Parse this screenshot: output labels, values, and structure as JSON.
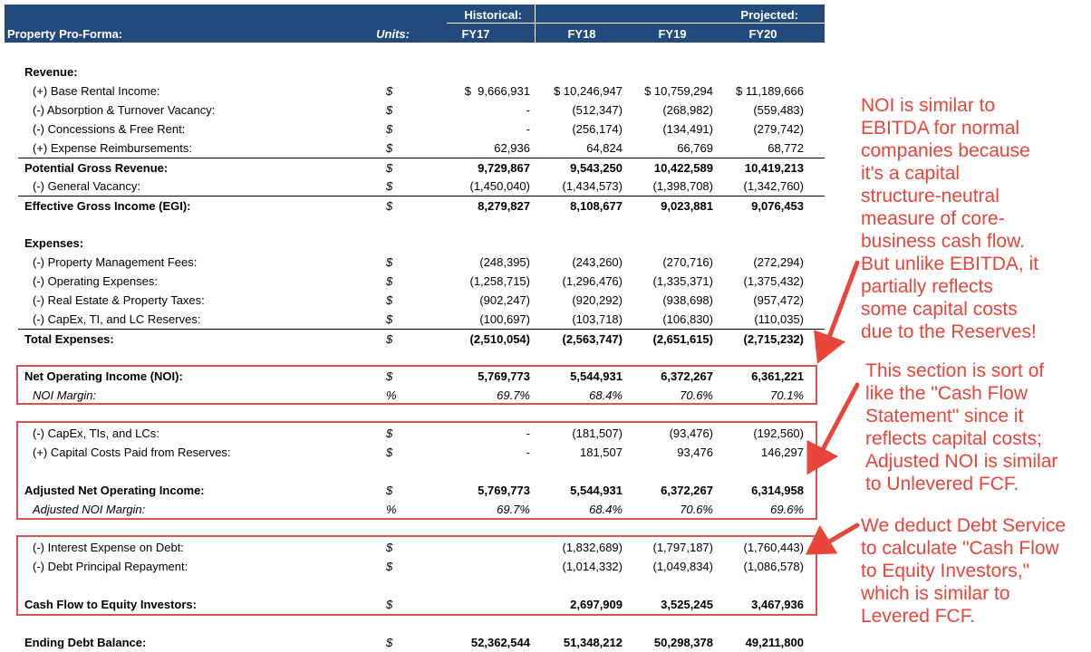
{
  "header": {
    "title": "Property Pro-Forma:",
    "units_label": "Units:",
    "historical_label": "Historical:",
    "projected_label": "Projected:",
    "years": [
      "FY17",
      "FY18",
      "FY19",
      "FY20"
    ]
  },
  "rows": [
    {
      "label": "Revenue:",
      "unit": "",
      "values": [
        "",
        "",
        "",
        ""
      ],
      "style": "head bold"
    },
    {
      "label": "(+) Base Rental Income:",
      "unit": "$",
      "values": [
        "$  9,666,931",
        "$ 10,246,947",
        "$ 10,759,294",
        "$ 11,189,666"
      ],
      "style": "sub"
    },
    {
      "label": "(-) Absorption & Turnover Vacancy:",
      "unit": "$",
      "values": [
        "-",
        "(512,347)",
        "(268,982)",
        "(559,483)"
      ],
      "style": "sub"
    },
    {
      "label": "(-) Concessions & Free Rent:",
      "unit": "$",
      "values": [
        "-",
        "(256,174)",
        "(134,491)",
        "(279,742)"
      ],
      "style": "sub"
    },
    {
      "label": "(+) Expense Reimbursements:",
      "unit": "$",
      "values": [
        "62,936",
        "64,824",
        "66,769",
        "68,772"
      ],
      "style": "sub"
    },
    {
      "label": "Potential Gross Revenue:",
      "unit": "$",
      "values": [
        "9,729,867",
        "9,543,250",
        "10,422,589",
        "10,419,213"
      ],
      "style": "total bold border"
    },
    {
      "label": "(-) General Vacancy:",
      "unit": "$",
      "values": [
        "(1,450,040)",
        "(1,434,573)",
        "(1,398,708)",
        "(1,342,760)"
      ],
      "style": "sub"
    },
    {
      "label": "Effective Gross Income (EGI):",
      "unit": "$",
      "values": [
        "8,279,827",
        "8,108,677",
        "9,023,881",
        "9,076,453"
      ],
      "style": "total bold border"
    },
    {
      "label": "Expenses:",
      "unit": "",
      "values": [
        "",
        "",
        "",
        ""
      ],
      "style": "head bold"
    },
    {
      "label": "(-) Property Management Fees:",
      "unit": "$",
      "values": [
        "(248,395)",
        "(243,260)",
        "(270,716)",
        "(272,294)"
      ],
      "style": "sub"
    },
    {
      "label": "(-) Operating Expenses:",
      "unit": "$",
      "values": [
        "(1,258,715)",
        "(1,296,476)",
        "(1,335,371)",
        "(1,375,432)"
      ],
      "style": "sub"
    },
    {
      "label": "(-) Real Estate & Property Taxes:",
      "unit": "$",
      "values": [
        "(902,247)",
        "(920,292)",
        "(938,698)",
        "(957,472)"
      ],
      "style": "sub"
    },
    {
      "label": "(-) CapEx, TI, and LC Reserves:",
      "unit": "$",
      "values": [
        "(100,697)",
        "(103,718)",
        "(106,830)",
        "(110,035)"
      ],
      "style": "sub"
    },
    {
      "label": "Total Expenses:",
      "unit": "$",
      "values": [
        "(2,510,054)",
        "(2,563,747)",
        "(2,651,615)",
        "(2,715,232)"
      ],
      "style": "total bold border"
    },
    {
      "label": "Net Operating Income (NOI):",
      "unit": "$",
      "values": [
        "5,769,773",
        "5,544,931",
        "6,372,267",
        "6,361,221"
      ],
      "style": "total bold"
    },
    {
      "label": "NOI Margin:",
      "unit": "%",
      "values": [
        "69.7%",
        "68.4%",
        "70.6%",
        "70.1%"
      ],
      "style": "sub ital"
    },
    {
      "label": "(-) CapEx, TIs, and LCs:",
      "unit": "$",
      "values": [
        "-",
        "(181,507)",
        "(93,476)",
        "(192,560)"
      ],
      "style": "sub"
    },
    {
      "label": "(+) Capital Costs Paid from Reserves:",
      "unit": "$",
      "values": [
        "-",
        "181,507",
        "93,476",
        "146,297"
      ],
      "style": "sub"
    },
    {
      "label": "Adjusted Net Operating Income:",
      "unit": "$",
      "values": [
        "5,769,773",
        "5,544,931",
        "6,372,267",
        "6,314,958"
      ],
      "style": "total bold"
    },
    {
      "label": "Adjusted NOI Margin:",
      "unit": "%",
      "values": [
        "69.7%",
        "68.4%",
        "70.6%",
        "69.6%"
      ],
      "style": "sub ital"
    },
    {
      "label": "(-) Interest Expense on Debt:",
      "unit": "$",
      "values": [
        "",
        "(1,832,689)",
        "(1,797,187)",
        "(1,760,443)"
      ],
      "style": "sub"
    },
    {
      "label": "(-) Debt Principal Repayment:",
      "unit": "$",
      "values": [
        "",
        "(1,014,332)",
        "(1,049,834)",
        "(1,086,578)"
      ],
      "style": "sub"
    },
    {
      "label": "Cash Flow to Equity Investors:",
      "unit": "$",
      "values": [
        "",
        "2,697,909",
        "3,525,245",
        "3,467,936"
      ],
      "style": "total bold"
    },
    {
      "label": "Ending Debt Balance:",
      "unit": "$",
      "values": [
        "52,362,544",
        "51,348,212",
        "50,298,378",
        "49,211,800"
      ],
      "style": "total bold"
    }
  ],
  "annotations": [
    "NOI is similar to\nEBITDA for normal\ncompanies because\nit's a capital\nstructure-neutral\nmeasure of core-\nbusiness cash flow.\nBut unlike EBITDA, it\npartially reflects\nsome capital costs\ndue to the Reserves!",
    "This section is sort of\nlike the \"Cash Flow\nStatement\" since it\nreflects capital costs;\nAdjusted NOI is similar\nto Unlevered FCF.",
    "We deduct Debt Service\nto calculate \"Cash Flow\nto Equity Investors,\"\nwhich is similar to\nLevered FCF."
  ],
  "colors": {
    "header_bg": "#234a7d",
    "annotation": "#e8463a",
    "box": "#d9534f"
  }
}
